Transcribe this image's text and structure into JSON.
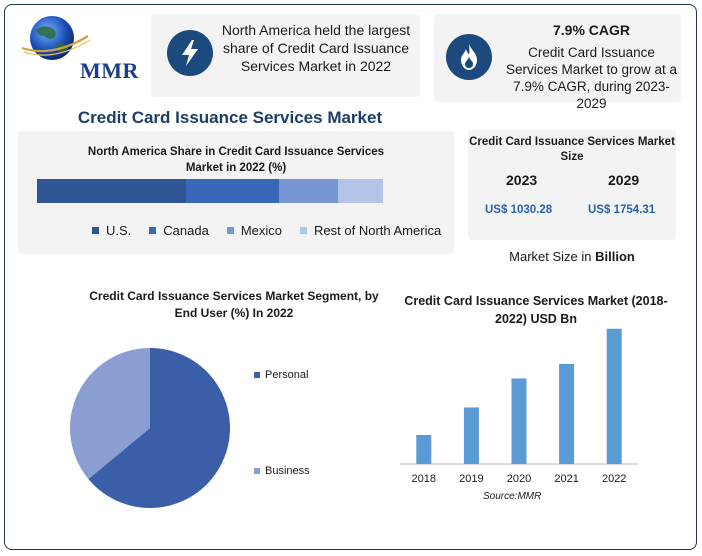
{
  "brand": {
    "logo_text": "MMR"
  },
  "highlights": {
    "region_text": "North America held the largest share of Credit Card Issuance Services Market in 2022",
    "cagr_title": "7.9% CAGR",
    "cagr_text": "Credit Card Issuance Services Market to grow at a 7.9% CAGR, during 2023-2029",
    "region_icon": "lightning-bolt-icon",
    "cagr_icon": "flame-icon"
  },
  "main_title": "Credit Card Issuance Services Market",
  "market_size": {
    "title": "Credit Card Issuance Services Market Size",
    "year_a": "2023",
    "year_b": "2029",
    "value_a": "US$ 1030.28",
    "value_b": "US$ 1754.31",
    "note_prefix": "Market Size in ",
    "note_unit": "Billion"
  },
  "chart_data": [
    {
      "type": "bar",
      "orientation": "stacked-horizontal",
      "title": "North America Share in Credit Card Issuance Services Market in 2022 (%)",
      "categories": [
        "U.S.",
        "Canada",
        "Mexico",
        "Rest of North America"
      ],
      "values": [
        43,
        27,
        17,
        13
      ],
      "colors": [
        "#2f5597",
        "#3a68b8",
        "#7896d2",
        "#b4c4e6"
      ],
      "legend_position": "bottom"
    },
    {
      "type": "pie",
      "title": "Credit Card Issuance Services Market Segment, by End User (%) In 2022",
      "categories": [
        "Personal",
        "Business"
      ],
      "values": [
        64,
        36
      ],
      "colors": [
        "#3a5fa8",
        "#8a9ed2"
      ],
      "legend_position": "right"
    },
    {
      "type": "bar",
      "title": "Credit Card Issuance Services Market (2018-2022) USD Bn",
      "categories": [
        "2018",
        "2019",
        "2020",
        "2021",
        "2022"
      ],
      "values": [
        420,
        820,
        1240,
        1450,
        1960
      ],
      "ylim": [
        0,
        2000
      ],
      "color": "#5b9bd5",
      "grid": false,
      "source": "Source:MMR"
    }
  ]
}
